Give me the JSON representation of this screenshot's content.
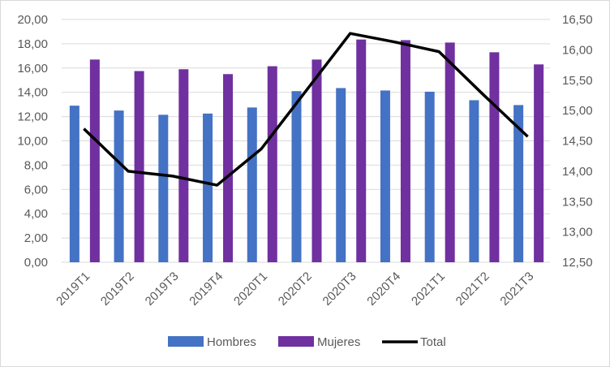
{
  "chart_data": {
    "type": "bar",
    "categories": [
      "2019T1",
      "2019T2",
      "2019T3",
      "2019T4",
      "2020T1",
      "2020T2",
      "2020T3",
      "2020T4",
      "2021T1",
      "2021T2",
      "2021T3"
    ],
    "series": [
      {
        "name": "Hombres",
        "kind": "bar",
        "axis": "left",
        "color": "#4472c4",
        "values": [
          12.9,
          12.5,
          12.15,
          12.25,
          12.75,
          14.1,
          14.35,
          14.15,
          14.05,
          13.35,
          12.95
        ]
      },
      {
        "name": "Mujeres",
        "kind": "bar",
        "axis": "left",
        "color": "#7030a0",
        "values": [
          16.7,
          15.75,
          15.9,
          15.5,
          16.15,
          16.7,
          18.35,
          18.3,
          18.1,
          17.3,
          16.3
        ]
      },
      {
        "name": "Total",
        "kind": "line",
        "axis": "right",
        "color": "#000000",
        "values": [
          14.7,
          14.0,
          13.92,
          13.77,
          14.37,
          15.32,
          16.27,
          16.13,
          15.97,
          15.26,
          14.57
        ]
      }
    ],
    "y_left": {
      "range": [
        0,
        20
      ],
      "ticks": [
        "0,00",
        "2,00",
        "4,00",
        "6,00",
        "8,00",
        "10,00",
        "12,00",
        "14,00",
        "16,00",
        "18,00",
        "20,00"
      ]
    },
    "y_right": {
      "range": [
        12.5,
        16.5
      ],
      "ticks": [
        "12,50",
        "13,00",
        "13,50",
        "14,00",
        "14,50",
        "15,00",
        "15,50",
        "16,00",
        "16,50"
      ]
    },
    "grid": true,
    "legend": "bottom"
  }
}
